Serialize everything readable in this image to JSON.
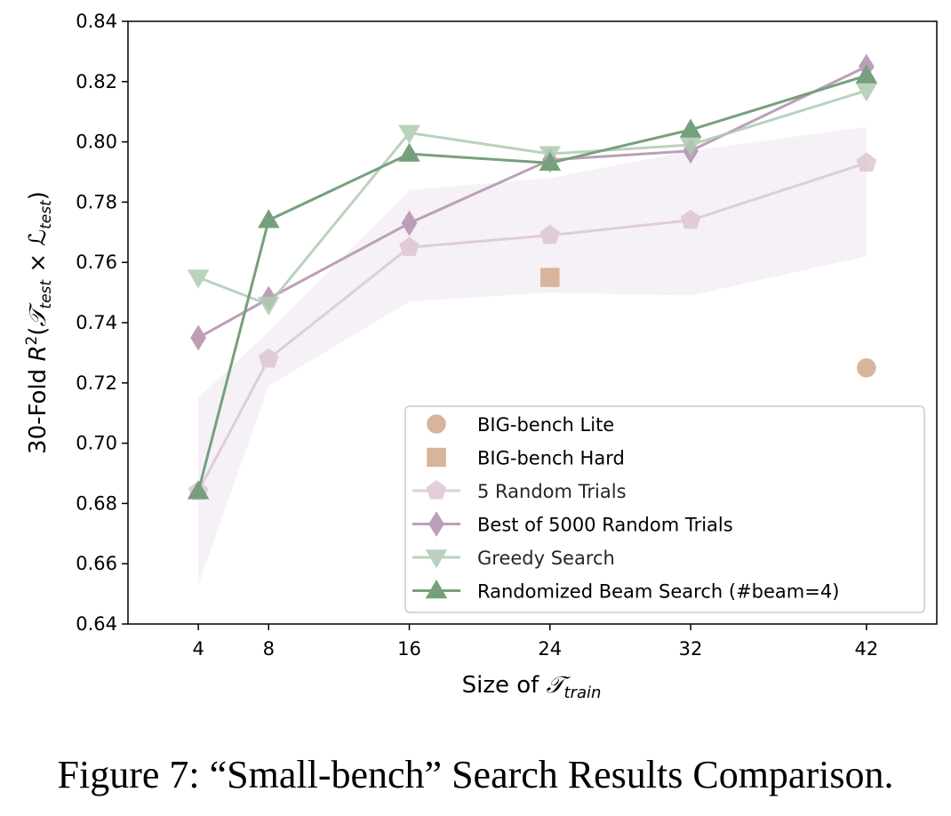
{
  "caption": "Figure 7: “Small-bench” Search Results Comparison.",
  "chart_data": {
    "type": "line",
    "xlabel_prefix": "Size of ",
    "xlabel_math": "𝒯",
    "xlabel_sub": "train",
    "ylabel_prefix": "30-Fold ",
    "ylabel_math_R": "R",
    "ylabel_sup": "2",
    "ylabel_open": "(",
    "ylabel_T": "𝒯",
    "ylabel_sub1": "test",
    "ylabel_times": " × ",
    "ylabel_L": "ℒ",
    "ylabel_sub2": "test",
    "ylabel_close": ")",
    "xticks": [
      4,
      8,
      16,
      24,
      32,
      42
    ],
    "yticks": [
      "0.64",
      "0.66",
      "0.68",
      "0.70",
      "0.72",
      "0.74",
      "0.76",
      "0.78",
      "0.80",
      "0.82",
      "0.84"
    ],
    "xlim": [
      0,
      46
    ],
    "ylim": [
      0.64,
      0.84
    ],
    "grid": false,
    "legend_position": "lower-right",
    "band": {
      "x": [
        4,
        8,
        16,
        24,
        32,
        42
      ],
      "upper": [
        0.715,
        0.737,
        0.784,
        0.788,
        0.797,
        0.805
      ],
      "lower": [
        0.653,
        0.719,
        0.747,
        0.75,
        0.749,
        0.762
      ],
      "color": "#e6dcec"
    },
    "series": [
      {
        "name": "BIG-bench Lite",
        "marker": "circle",
        "color": "#d8b49a",
        "line": false,
        "x": [
          42
        ],
        "values": [
          0.725
        ]
      },
      {
        "name": "BIG-bench Hard",
        "marker": "square",
        "color": "#d8b49a",
        "line": false,
        "x": [
          24
        ],
        "values": [
          0.755
        ]
      },
      {
        "name": "5 Random Trials",
        "marker": "pentagon",
        "color": "#ddc6d3",
        "line": true,
        "x": [
          4,
          8,
          16,
          24,
          32,
          42
        ],
        "values": [
          0.684,
          0.728,
          0.765,
          0.769,
          0.774,
          0.793
        ]
      },
      {
        "name": "Best of 5000 Random Trials",
        "marker": "diamond",
        "color": "#bc9fb7",
        "line": true,
        "x": [
          4,
          8,
          16,
          24,
          32,
          42
        ],
        "values": [
          0.735,
          0.748,
          0.773,
          0.794,
          0.797,
          0.825
        ]
      },
      {
        "name": "Greedy Search",
        "marker": "triangle-down",
        "color": "#afcbb2",
        "line": true,
        "x": [
          4,
          8,
          16,
          24,
          32,
          42
        ],
        "values": [
          0.755,
          0.746,
          0.803,
          0.796,
          0.799,
          0.817
        ]
      },
      {
        "name": "Randomized Beam Search (#beam=4)",
        "marker": "triangle-up",
        "color": "#76a07c",
        "line": true,
        "x": [
          4,
          8,
          16,
          24,
          32,
          42
        ],
        "values": [
          0.684,
          0.774,
          0.796,
          0.793,
          0.804,
          0.822
        ]
      }
    ]
  }
}
